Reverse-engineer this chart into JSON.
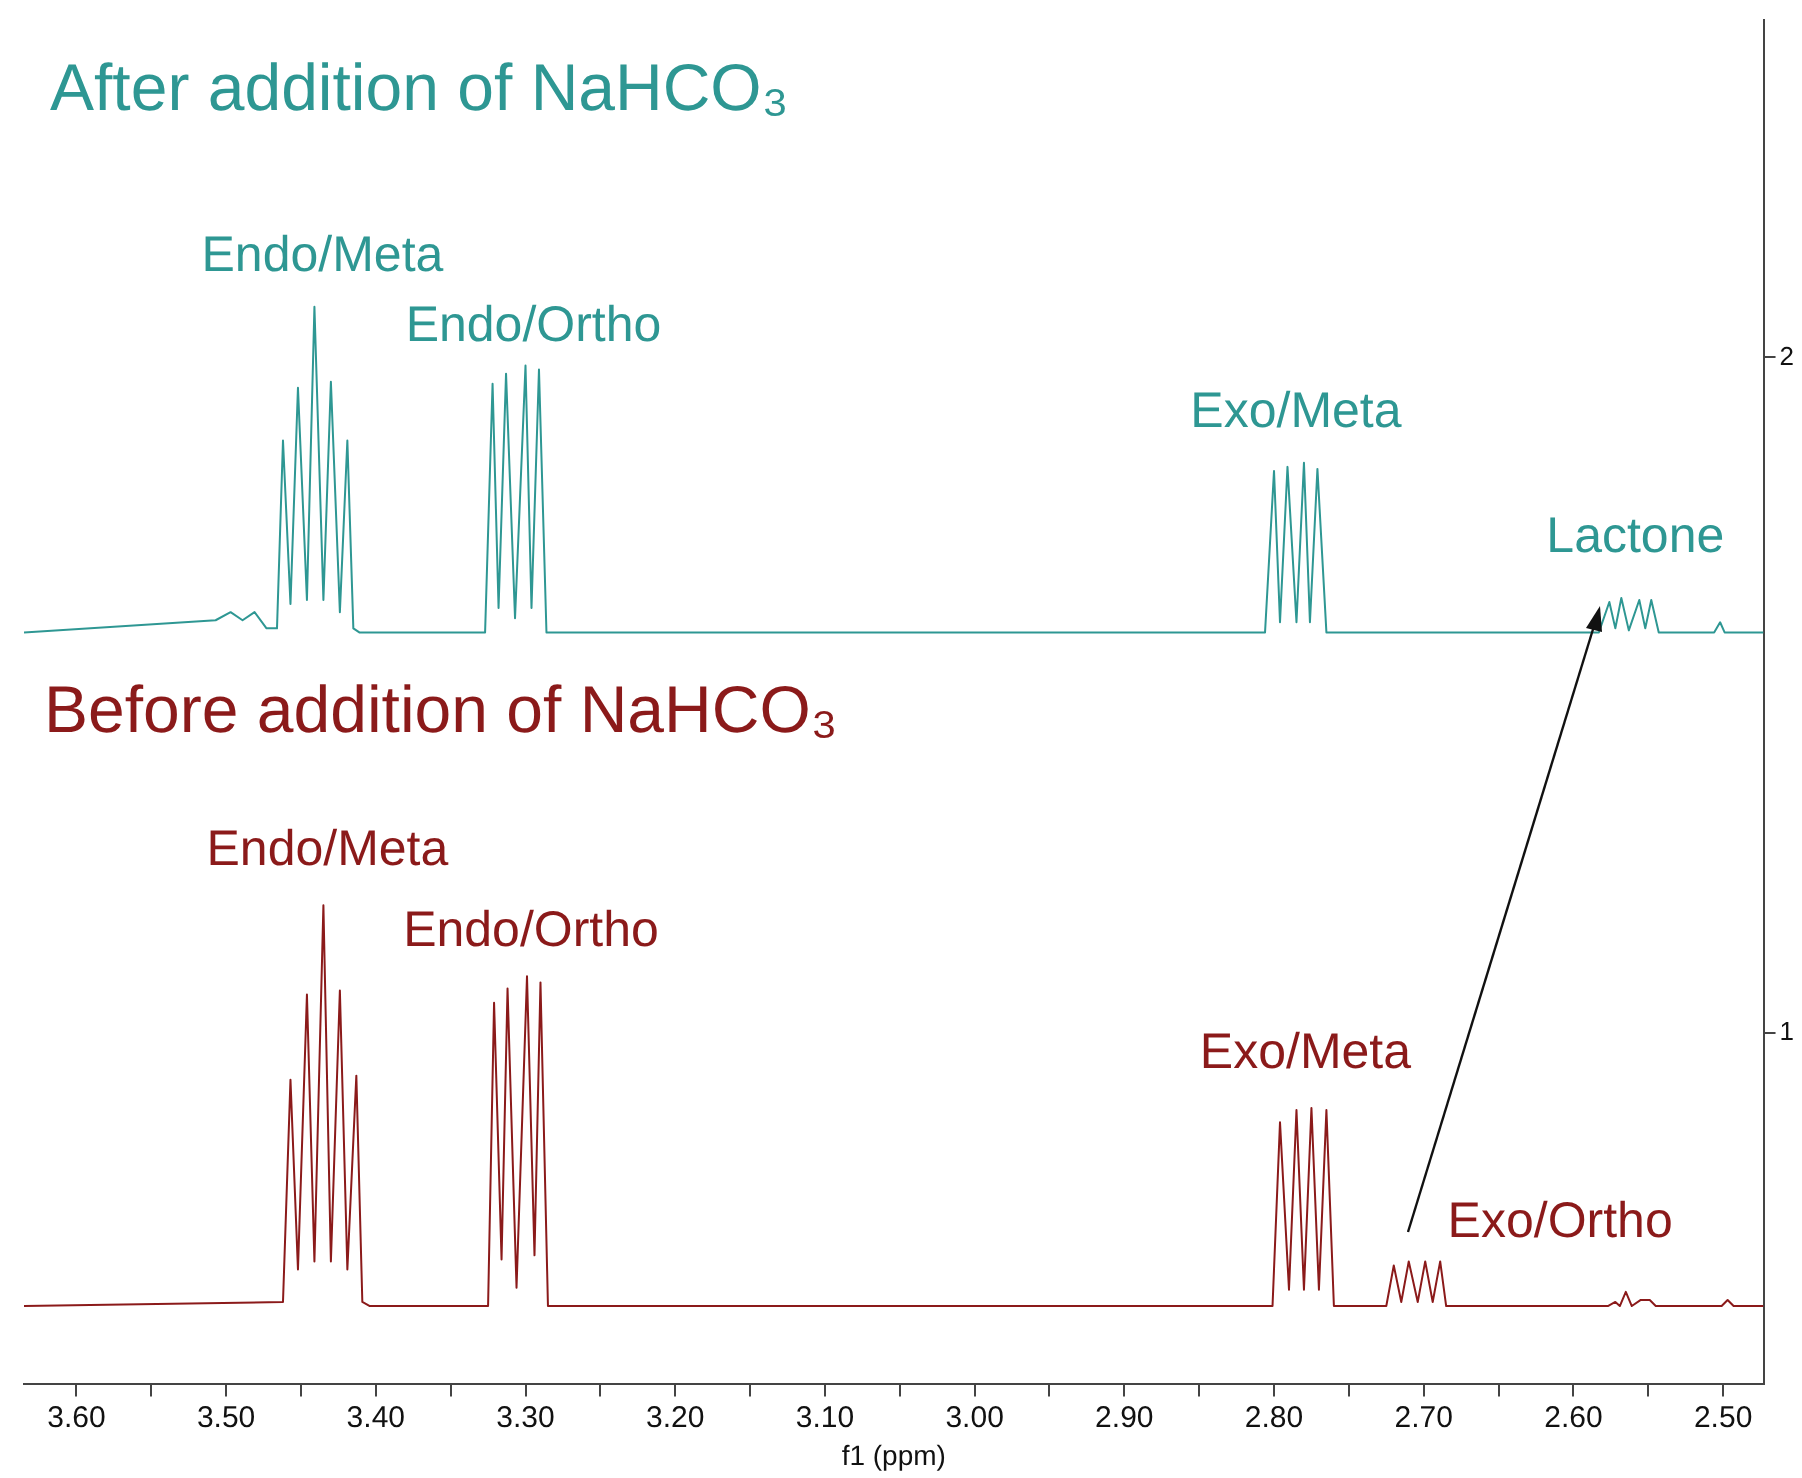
{
  "chart_data": {
    "type": "line",
    "xlabel": "f1 (ppm)",
    "legend": false,
    "grid": false,
    "xlim": [
      3.635,
      2.473
    ],
    "ylim": [
      0.48,
      2.5
    ],
    "yticks": [
      1,
      2
    ],
    "xticks": [
      {
        "value": 3.6,
        "label": "3.60"
      },
      {
        "value": 3.55,
        "label": null
      },
      {
        "value": 3.5,
        "label": "3.50"
      },
      {
        "value": 3.45,
        "label": null
      },
      {
        "value": 3.4,
        "label": "3.40"
      },
      {
        "value": 3.35,
        "label": null
      },
      {
        "value": 3.3,
        "label": "3.30"
      },
      {
        "value": 3.25,
        "label": null
      },
      {
        "value": 3.2,
        "label": "3.20"
      },
      {
        "value": 3.15,
        "label": null
      },
      {
        "value": 3.1,
        "label": "3.10"
      },
      {
        "value": 3.05,
        "label": null
      },
      {
        "value": 3.0,
        "label": "3.00"
      },
      {
        "value": 2.95,
        "label": null
      },
      {
        "value": 2.9,
        "label": "2.90"
      },
      {
        "value": 2.85,
        "label": null
      },
      {
        "value": 2.8,
        "label": "2.80"
      },
      {
        "value": 2.75,
        "label": null
      },
      {
        "value": 2.7,
        "label": "2.70"
      },
      {
        "value": 2.65,
        "label": null
      },
      {
        "value": 2.6,
        "label": "2.60"
      },
      {
        "value": 2.55,
        "label": null
      },
      {
        "value": 2.5,
        "label": "2.50"
      }
    ],
    "series": [
      {
        "name": "After addition of NaHCO₃",
        "color": "#2e9793",
        "x": [
          3.635,
          3.507,
          3.497,
          3.489,
          3.481,
          3.473,
          3.466,
          3.462,
          3.457,
          3.452,
          3.446,
          3.441,
          3.435,
          3.43,
          3.424,
          3.419,
          3.415,
          3.411,
          3.327,
          3.322,
          3.318,
          3.313,
          3.307,
          3.3,
          3.296,
          3.291,
          3.286,
          2.806,
          2.8,
          2.796,
          2.791,
          2.785,
          2.78,
          2.776,
          2.771,
          2.765,
          2.583,
          2.576,
          2.572,
          2.568,
          2.563,
          2.556,
          2.552,
          2.548,
          2.543,
          2.506,
          2.502,
          2.499,
          2.473
        ],
        "values": [
          1.593,
          1.611,
          1.623,
          1.611,
          1.623,
          1.599,
          1.599,
          1.877,
          1.635,
          1.955,
          1.641,
          2.075,
          1.641,
          1.964,
          1.623,
          1.877,
          1.599,
          1.593,
          1.593,
          1.961,
          1.629,
          1.976,
          1.614,
          1.988,
          1.629,
          1.982,
          1.593,
          1.593,
          1.832,
          1.608,
          1.838,
          1.608,
          1.844,
          1.608,
          1.835,
          1.593,
          1.593,
          1.638,
          1.599,
          1.644,
          1.596,
          1.641,
          1.599,
          1.641,
          1.593,
          1.593,
          1.608,
          1.593,
          1.593
        ]
      },
      {
        "name": "Before addition of NaHCO₃",
        "color": "#8b1a1a",
        "x": [
          3.635,
          3.462,
          3.457,
          3.452,
          3.446,
          3.441,
          3.435,
          3.43,
          3.424,
          3.419,
          3.413,
          3.409,
          3.404,
          3.325,
          3.321,
          3.316,
          3.312,
          3.306,
          3.299,
          3.294,
          3.29,
          3.285,
          2.801,
          2.796,
          2.79,
          2.785,
          2.78,
          2.775,
          2.77,
          2.765,
          2.76,
          2.725,
          2.72,
          2.715,
          2.71,
          2.704,
          2.699,
          2.694,
          2.689,
          2.685,
          2.577,
          2.572,
          2.569,
          2.565,
          2.561,
          2.555,
          2.549,
          2.545,
          2.501,
          2.497,
          2.493,
          2.473
        ],
        "values": [
          0.596,
          0.602,
          0.931,
          0.65,
          1.057,
          0.662,
          1.189,
          0.662,
          1.063,
          0.65,
          0.937,
          0.602,
          0.596,
          0.596,
          1.045,
          0.665,
          1.066,
          0.623,
          1.084,
          0.671,
          1.075,
          0.596,
          0.596,
          0.868,
          0.62,
          0.886,
          0.62,
          0.889,
          0.62,
          0.886,
          0.596,
          0.596,
          0.656,
          0.602,
          0.662,
          0.602,
          0.662,
          0.602,
          0.662,
          0.596,
          0.596,
          0.602,
          0.596,
          0.617,
          0.596,
          0.605,
          0.605,
          0.596,
          0.596,
          0.605,
          0.596,
          0.596
        ]
      }
    ],
    "annotations": [
      {
        "text": "Endo/Meta",
        "x": 3.441,
        "y": 2.075
      },
      {
        "text": "Endo/Ortho",
        "x": 3.3,
        "y": 1.988
      },
      {
        "text": "Exo/Meta",
        "x": 2.78,
        "y": 1.844
      },
      {
        "text": "Lactone",
        "x": 2.556,
        "y": 1.641
      },
      {
        "text": "Endo/Meta",
        "x": 3.435,
        "y": 1.189
      },
      {
        "text": "Endo/Ortho",
        "x": 3.299,
        "y": 1.084
      },
      {
        "text": "Exo/Meta",
        "x": 2.775,
        "y": 0.889
      },
      {
        "text": "Exo/Ortho",
        "x": 2.689,
        "y": 0.662
      }
    ]
  }
}
